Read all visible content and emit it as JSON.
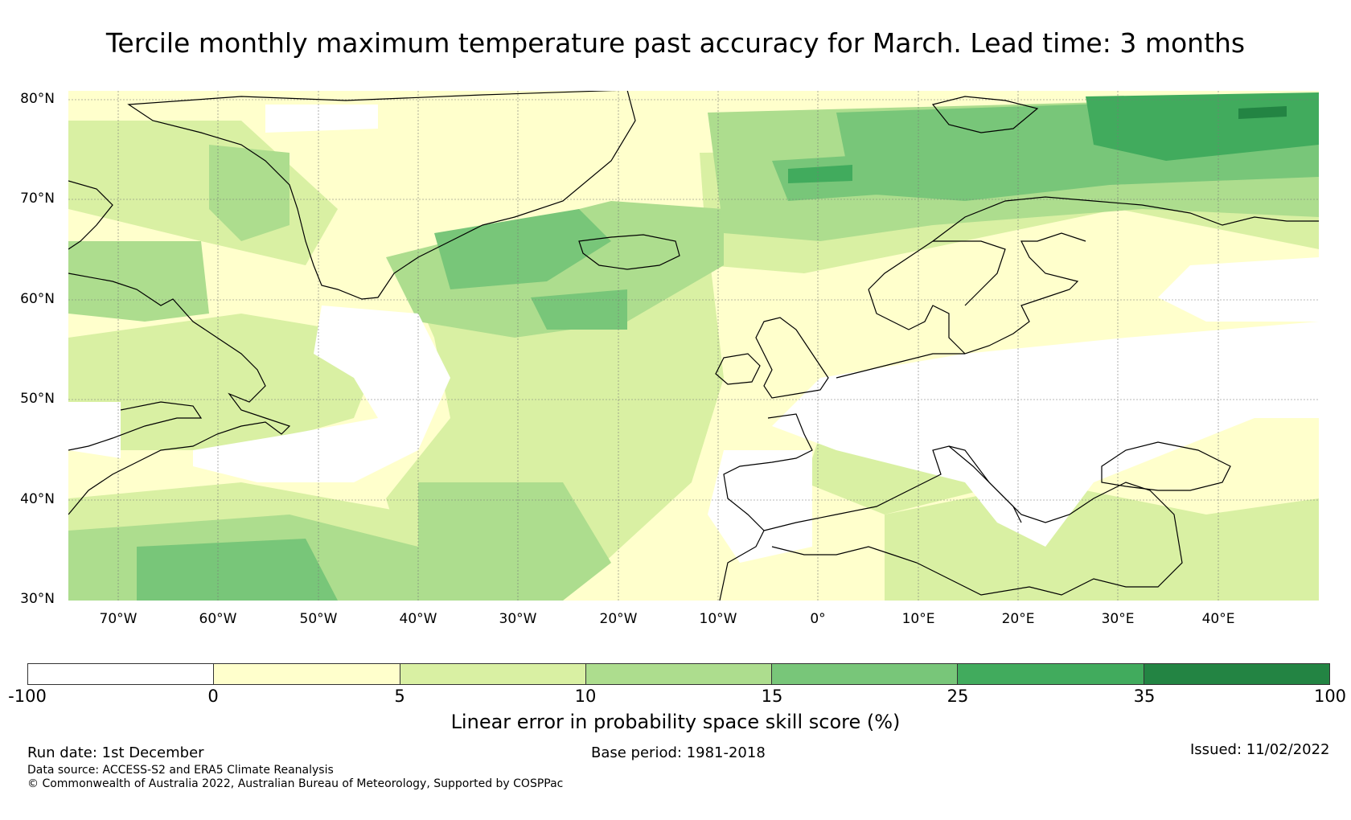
{
  "title": "Tercile monthly maximum temperature past accuracy for March. Lead time: 3 months",
  "map": {
    "lat_labels": [
      "80°N",
      "70°N",
      "60°N",
      "50°N",
      "40°N",
      "30°N"
    ],
    "lon_labels": [
      "70°W",
      "60°W",
      "50°W",
      "40°W",
      "30°W",
      "20°W",
      "10°W",
      "0°",
      "10°E",
      "20°E",
      "30°E",
      "40°E"
    ],
    "lat_range": [
      30,
      81
    ],
    "lon_range": [
      -75,
      50
    ]
  },
  "colorbar": {
    "ticks": [
      "-100",
      "0",
      "5",
      "10",
      "15",
      "25",
      "35",
      "100"
    ],
    "colors": [
      "#ffffff",
      "#ffffcc",
      "#d9f0a3",
      "#addd8e",
      "#78c679",
      "#41ab5d",
      "#238443"
    ],
    "label": "Linear error in probability space skill score (%)"
  },
  "footer": {
    "run_date": "Run date: 1st December",
    "base_period": "Base period: 1981-2018",
    "issued": "Issued: 11/02/2022",
    "data_source": "Data source: ACCESS-S2 and ERA5 Climate Reanalysis",
    "copyright": "© Commonwealth of Australia 2022, Australian Bureau of Meteorology, Supported by COSPPac"
  }
}
